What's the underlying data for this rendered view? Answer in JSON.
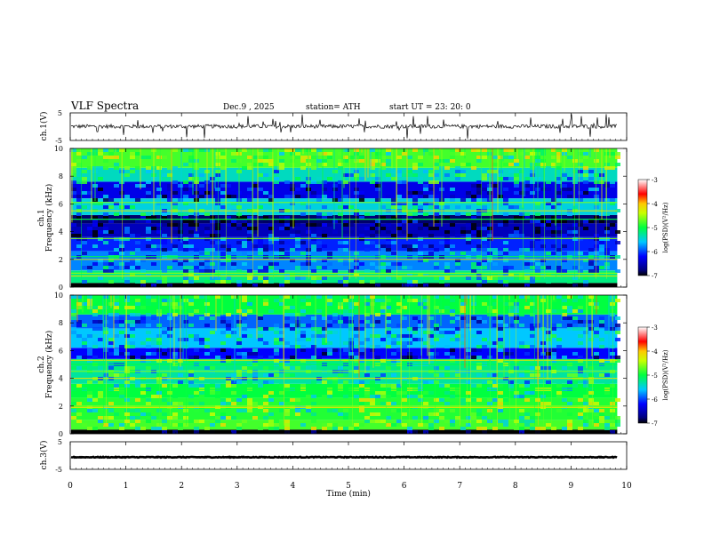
{
  "header": {
    "title": "VLF  Spectra",
    "date": "Dec.9   , 2025",
    "station": "station= ATH",
    "start": "start  UT  =    23: 20: 0"
  },
  "chart_data": {
    "type": "heatmap",
    "title": "VLF  Spectra",
    "x": {
      "label": "Time  (min)",
      "range": [
        0,
        10
      ],
      "ticks": [
        "0",
        "1",
        "2",
        "3",
        "4",
        "5",
        "6",
        "7",
        "8",
        "9",
        "10"
      ],
      "data_end": 9.83
    },
    "waveform_ch1": {
      "label": "ch.1(V)",
      "ylim": [
        -5,
        5
      ],
      "ticks": [
        "5",
        "-5"
      ],
      "mean": 0.1,
      "spread": 0.7
    },
    "spectrogram_ch1": {
      "label_line1": "ch.1",
      "label_line2": "Frequency  (kHz)",
      "ylim": [
        0,
        10
      ],
      "ticks": [
        "10",
        "8",
        "6",
        "4",
        "2",
        "0"
      ],
      "bands_khz": [
        {
          "f0": 0,
          "f1": 0.3,
          "level": -7
        },
        {
          "f0": 0.3,
          "f1": 1.2,
          "level": -5.2
        },
        {
          "f0": 1.2,
          "f1": 2.6,
          "level": -5.8
        },
        {
          "f0": 2.6,
          "f1": 3.6,
          "level": -6.1
        },
        {
          "f0": 3.6,
          "f1": 4.6,
          "level": -6.5
        },
        {
          "f0": 4.6,
          "f1": 5.2,
          "level": -6.8
        },
        {
          "f0": 5.2,
          "f1": 6.4,
          "level": -5.5
        },
        {
          "f0": 6.4,
          "f1": 7.6,
          "level": -6.3
        },
        {
          "f0": 7.6,
          "f1": 8.6,
          "level": -5.4
        },
        {
          "f0": 8.6,
          "f1": 10,
          "level": -4.8
        }
      ],
      "lines_khz": [
        0.8,
        1.0,
        2.2,
        2.0,
        3.5,
        4.9,
        5.5,
        6.1
      ]
    },
    "spectrogram_ch2": {
      "label_line1": "ch.2",
      "label_line2": "Frequency  (kHz)",
      "ylim": [
        0,
        10
      ],
      "ticks": [
        "10",
        "8",
        "6",
        "4",
        "2",
        "0"
      ],
      "bands_khz": [
        {
          "f0": 0,
          "f1": 0.3,
          "level": -7
        },
        {
          "f0": 0.3,
          "f1": 1.0,
          "level": -4.8
        },
        {
          "f0": 1.0,
          "f1": 2.6,
          "level": -4.9
        },
        {
          "f0": 2.6,
          "f1": 3.6,
          "level": -5.0
        },
        {
          "f0": 3.6,
          "f1": 4.6,
          "level": -5.3
        },
        {
          "f0": 4.6,
          "f1": 5.4,
          "level": -5.2
        },
        {
          "f0": 5.4,
          "f1": 6.2,
          "level": -6.2
        },
        {
          "f0": 6.2,
          "f1": 7.6,
          "level": -5.6
        },
        {
          "f0": 7.6,
          "f1": 8.6,
          "level": -5.9
        },
        {
          "f0": 8.6,
          "f1": 10,
          "level": -5.0
        }
      ],
      "lines_khz": [
        1.9,
        2.0,
        3.2,
        4.0,
        4.5,
        5.0,
        5.3
      ]
    },
    "waveform_ch3": {
      "label": "ch.3(V)",
      "ylim": [
        -5,
        5
      ],
      "ticks": [
        "5",
        "-5"
      ],
      "mean": -0.6,
      "spread": 0.15
    },
    "colorbar": {
      "label": "log(PSD)(V²/Hz)",
      "range": [
        -7,
        -3
      ],
      "ticks": [
        "-3",
        "-4",
        "-5",
        "-6",
        "-7"
      ]
    }
  },
  "colors": {
    "axis": "#000000",
    "background": "#ffffff"
  }
}
